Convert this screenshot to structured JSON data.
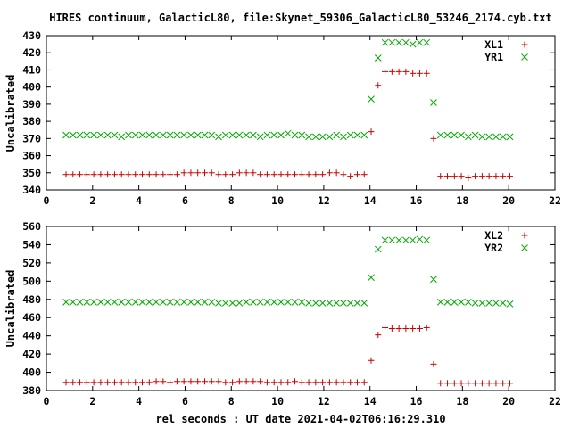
{
  "title": "HIRES continuum, GalacticL80, file:Skynet_59306_GalacticL80_53246_2174.cyb.txt",
  "xlabel": "rel seconds : UT date 2021-04-02T06:16:29.310",
  "colors": {
    "series_1": "#cc0000",
    "series_2": "#00aa00"
  },
  "chart_data": [
    {
      "type": "scatter",
      "ylabel": "Uncalibrated",
      "xlim": [
        0,
        22
      ],
      "ylim": [
        340,
        430
      ],
      "xticks": [
        0,
        2,
        4,
        6,
        8,
        10,
        12,
        14,
        16,
        18,
        20,
        22
      ],
      "yticks": [
        340,
        350,
        360,
        370,
        380,
        390,
        400,
        410,
        420,
        430
      ],
      "grid": false,
      "legend": "top-right",
      "series": [
        {
          "name": "XL1",
          "marker": "plus",
          "x": [
            0.85,
            1.15,
            1.45,
            1.75,
            2.05,
            2.35,
            2.65,
            2.95,
            3.25,
            3.55,
            3.85,
            4.15,
            4.45,
            4.75,
            5.05,
            5.35,
            5.65,
            5.95,
            6.25,
            6.55,
            6.85,
            7.15,
            7.45,
            7.75,
            8.05,
            8.35,
            8.65,
            8.95,
            9.25,
            9.55,
            9.85,
            10.15,
            10.45,
            10.75,
            11.05,
            11.35,
            11.65,
            11.95,
            12.25,
            12.55,
            12.85,
            13.15,
            13.45,
            13.75,
            14.05,
            14.35,
            14.65,
            14.95,
            15.25,
            15.55,
            15.85,
            16.15,
            16.45,
            16.75,
            17.05,
            17.35,
            17.65,
            17.95,
            18.25,
            18.55,
            18.85,
            19.15,
            19.45,
            19.75,
            20.05
          ],
          "y": [
            349,
            349,
            349,
            349,
            349,
            349,
            349,
            349,
            349,
            349,
            349,
            349,
            349,
            349,
            349,
            349,
            349,
            350,
            350,
            350,
            350,
            350,
            349,
            349,
            349,
            350,
            350,
            350,
            349,
            349,
            349,
            349,
            349,
            349,
            349,
            349,
            349,
            349,
            350,
            350,
            349,
            348,
            349,
            349,
            374,
            401,
            409,
            409,
            409,
            409,
            408,
            408,
            408,
            370,
            348,
            348,
            348,
            348,
            347,
            348,
            348,
            348,
            348,
            348,
            348
          ]
        },
        {
          "name": "YR1",
          "marker": "cross",
          "x": [
            0.85,
            1.15,
            1.45,
            1.75,
            2.05,
            2.35,
            2.65,
            2.95,
            3.25,
            3.55,
            3.85,
            4.15,
            4.45,
            4.75,
            5.05,
            5.35,
            5.65,
            5.95,
            6.25,
            6.55,
            6.85,
            7.15,
            7.45,
            7.75,
            8.05,
            8.35,
            8.65,
            8.95,
            9.25,
            9.55,
            9.85,
            10.15,
            10.45,
            10.75,
            11.05,
            11.35,
            11.65,
            11.95,
            12.25,
            12.55,
            12.85,
            13.15,
            13.45,
            13.75,
            14.05,
            14.35,
            14.65,
            14.95,
            15.25,
            15.55,
            15.85,
            16.15,
            16.45,
            16.75,
            17.05,
            17.35,
            17.65,
            17.95,
            18.25,
            18.55,
            18.85,
            19.15,
            19.45,
            19.75,
            20.05
          ],
          "y": [
            372,
            372,
            372,
            372,
            372,
            372,
            372,
            372,
            371,
            372,
            372,
            372,
            372,
            372,
            372,
            372,
            372,
            372,
            372,
            372,
            372,
            372,
            371,
            372,
            372,
            372,
            372,
            372,
            371,
            372,
            372,
            372,
            373,
            372,
            372,
            371,
            371,
            371,
            371,
            372,
            371,
            372,
            372,
            372,
            393,
            417,
            426,
            426,
            426,
            426,
            425,
            426,
            426,
            391,
            372,
            372,
            372,
            372,
            371,
            372,
            371,
            371,
            371,
            371,
            371
          ]
        }
      ]
    },
    {
      "type": "scatter",
      "ylabel": "Uncalibrated",
      "xlim": [
        0,
        22
      ],
      "ylim": [
        380,
        560
      ],
      "xticks": [
        0,
        2,
        4,
        6,
        8,
        10,
        12,
        14,
        16,
        18,
        20,
        22
      ],
      "yticks": [
        380,
        400,
        420,
        440,
        460,
        480,
        500,
        520,
        540,
        560
      ],
      "grid": false,
      "legend": "top-right",
      "series": [
        {
          "name": "XL2",
          "marker": "plus",
          "x": [
            0.85,
            1.15,
            1.45,
            1.75,
            2.05,
            2.35,
            2.65,
            2.95,
            3.25,
            3.55,
            3.85,
            4.15,
            4.45,
            4.75,
            5.05,
            5.35,
            5.65,
            5.95,
            6.25,
            6.55,
            6.85,
            7.15,
            7.45,
            7.75,
            8.05,
            8.35,
            8.65,
            8.95,
            9.25,
            9.55,
            9.85,
            10.15,
            10.45,
            10.75,
            11.05,
            11.35,
            11.65,
            11.95,
            12.25,
            12.55,
            12.85,
            13.15,
            13.45,
            13.75,
            14.05,
            14.35,
            14.65,
            14.95,
            15.25,
            15.55,
            15.85,
            16.15,
            16.45,
            16.75,
            17.05,
            17.35,
            17.65,
            17.95,
            18.25,
            18.55,
            18.85,
            19.15,
            19.45,
            19.75,
            20.05
          ],
          "y": [
            389,
            389,
            389,
            389,
            389,
            389,
            389,
            389,
            389,
            389,
            389,
            389,
            389,
            390,
            390,
            389,
            390,
            390,
            390,
            390,
            390,
            390,
            390,
            389,
            389,
            390,
            390,
            390,
            390,
            389,
            389,
            389,
            389,
            390,
            389,
            389,
            389,
            389,
            389,
            389,
            389,
            389,
            389,
            389,
            413,
            441,
            449,
            448,
            448,
            448,
            448,
            448,
            449,
            409,
            388,
            388,
            388,
            388,
            388,
            388,
            388,
            388,
            388,
            388,
            388
          ]
        },
        {
          "name": "YR2",
          "marker": "cross",
          "x": [
            0.85,
            1.15,
            1.45,
            1.75,
            2.05,
            2.35,
            2.65,
            2.95,
            3.25,
            3.55,
            3.85,
            4.15,
            4.45,
            4.75,
            5.05,
            5.35,
            5.65,
            5.95,
            6.25,
            6.55,
            6.85,
            7.15,
            7.45,
            7.75,
            8.05,
            8.35,
            8.65,
            8.95,
            9.25,
            9.55,
            9.85,
            10.15,
            10.45,
            10.75,
            11.05,
            11.35,
            11.65,
            11.95,
            12.25,
            12.55,
            12.85,
            13.15,
            13.45,
            13.75,
            14.05,
            14.35,
            14.65,
            14.95,
            15.25,
            15.55,
            15.85,
            16.15,
            16.45,
            16.75,
            17.05,
            17.35,
            17.65,
            17.95,
            18.25,
            18.55,
            18.85,
            19.15,
            19.45,
            19.75,
            20.05
          ],
          "y": [
            477,
            477,
            477,
            477,
            477,
            477,
            477,
            477,
            477,
            477,
            477,
            477,
            477,
            477,
            477,
            477,
            477,
            477,
            477,
            477,
            477,
            477,
            476,
            476,
            476,
            476,
            477,
            477,
            477,
            477,
            477,
            477,
            477,
            477,
            477,
            476,
            476,
            476,
            476,
            476,
            476,
            476,
            476,
            476,
            504,
            535,
            545,
            545,
            545,
            545,
            545,
            546,
            545,
            502,
            477,
            477,
            477,
            477,
            477,
            476,
            476,
            476,
            476,
            476,
            475
          ]
        }
      ]
    }
  ]
}
